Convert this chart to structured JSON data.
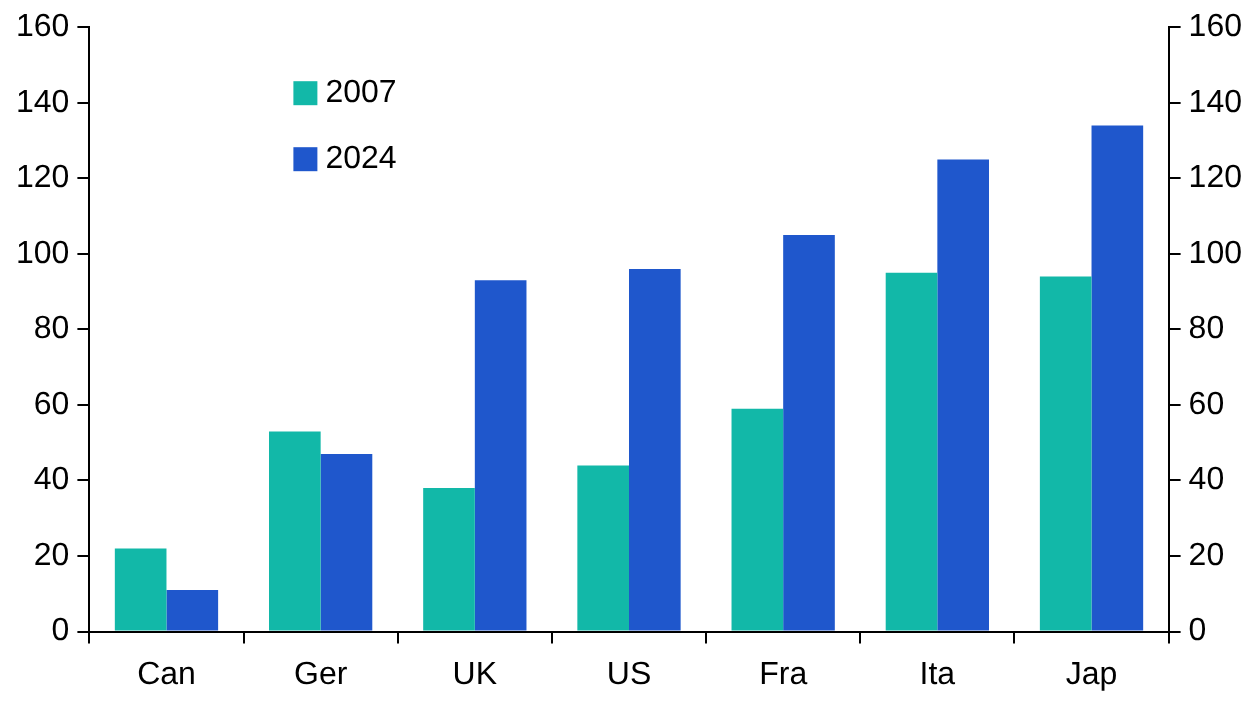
{
  "chart_data": {
    "type": "bar",
    "categories": [
      "Can",
      "Ger",
      "UK",
      "US",
      "Fra",
      "Ita",
      "Jap"
    ],
    "series": [
      {
        "name": "2007",
        "color": "#12b8a8",
        "values": [
          22,
          53,
          38,
          44,
          59,
          95,
          94
        ]
      },
      {
        "name": "2024",
        "color": "#1f57cc",
        "values": [
          11,
          47,
          93,
          96,
          105,
          125,
          134
        ]
      }
    ],
    "ylim": [
      0,
      160
    ],
    "yticks": [
      0,
      20,
      40,
      60,
      80,
      100,
      120,
      140,
      160
    ],
    "y2lim": [
      0,
      160
    ],
    "y2ticks": [
      0,
      20,
      40,
      60,
      80,
      100,
      120,
      140,
      160
    ],
    "grid": false,
    "legend": "top left"
  }
}
